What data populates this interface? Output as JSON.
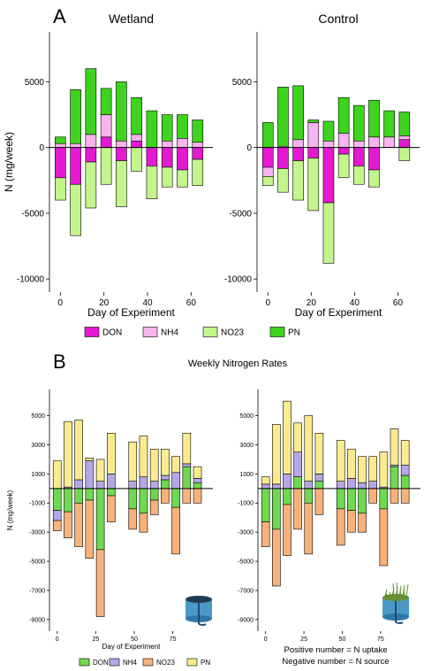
{
  "panel_labels": {
    "a": "A",
    "b": "B"
  },
  "footnote": {
    "line1": "Positive number = N uptake",
    "line2": "Negative number = N source"
  },
  "chart_data": [
    {
      "id": "A-wetland",
      "type": "bar",
      "stacked": true,
      "title": "Wetland",
      "xlabel": "Day of Experiment",
      "ylabel": "N (mg/week)",
      "xlim": [
        -5,
        70
      ],
      "ylim": [
        -11000,
        8800
      ],
      "xticks": [
        0,
        20,
        40,
        60
      ],
      "yticks": [
        -10000,
        -5000,
        0,
        5000
      ],
      "ytick_labels": [
        "-10000",
        "-5000",
        "0",
        "5000"
      ],
      "grid": false,
      "x": [
        0,
        7,
        14,
        21,
        28,
        35,
        42,
        49,
        56,
        63
      ],
      "series": [
        {
          "name": "DON",
          "color": "#e619d2",
          "values": [
            -2300,
            -2800,
            -1100,
            800,
            -1000,
            500,
            -1400,
            -1500,
            -1700,
            -900
          ]
        },
        {
          "name": "NH4",
          "color": "#f6b3ee",
          "values": [
            300,
            300,
            1000,
            1700,
            500,
            500,
            0,
            500,
            700,
            400
          ]
        },
        {
          "name": "NO23",
          "color": "#c3f58c",
          "values": [
            -1700,
            -3900,
            -3500,
            -2800,
            -3500,
            -1800,
            -2500,
            -1500,
            -1300,
            -2000
          ]
        },
        {
          "name": "PN",
          "color": "#3ed41e",
          "values": [
            500,
            4100,
            5000,
            2000,
            4500,
            2800,
            2800,
            2000,
            1800,
            1700
          ]
        }
      ],
      "legend": "bottom"
    },
    {
      "id": "A-control",
      "type": "bar",
      "stacked": true,
      "title": "Control",
      "xlabel": "Day of Experiment",
      "ylabel": "",
      "xlim": [
        -5,
        70
      ],
      "ylim": [
        -11000,
        8800
      ],
      "xticks": [
        0,
        20,
        40,
        60
      ],
      "yticks": [
        -10000,
        -5000,
        0,
        5000
      ],
      "ytick_labels": [
        "-10000",
        "-5000",
        "0",
        "5000"
      ],
      "grid": false,
      "x": [
        0,
        7,
        14,
        21,
        28,
        35,
        42,
        49,
        56,
        63
      ],
      "series": [
        {
          "name": "DON",
          "color": "#e619d2",
          "values": [
            -1500,
            -1600,
            -1000,
            -800,
            -4200,
            -500,
            -1400,
            -1700,
            0,
            600
          ]
        },
        {
          "name": "NH4",
          "color": "#f6b3ee",
          "values": [
            -700,
            100,
            600,
            1900,
            500,
            1100,
            500,
            800,
            800,
            300
          ]
        },
        {
          "name": "NO23",
          "color": "#c3f58c",
          "values": [
            -700,
            -1800,
            -3000,
            -4000,
            -4600,
            -1800,
            -1400,
            -1300,
            0,
            -1000
          ]
        },
        {
          "name": "PN",
          "color": "#3ed41e",
          "values": [
            1900,
            4500,
            4100,
            200,
            1500,
            2700,
            2700,
            2800,
            2000,
            1800
          ]
        }
      ],
      "legend": "bottom"
    },
    {
      "id": "B-control",
      "type": "bar",
      "stacked": true,
      "title": "Weekly Nitrogen Rates",
      "xlabel": "Day of Experiment",
      "ylabel": "N (mg/week)",
      "xlim": [
        -5,
        101
      ],
      "ylim": [
        -9800,
        6800
      ],
      "xticks": [
        0,
        25,
        50,
        75
      ],
      "yticks": [
        -9000,
        -7000,
        -5000,
        -3000,
        -1000,
        1000,
        3000,
        5000
      ],
      "ytick_labels": [
        "-9000",
        "-7000",
        "-5000",
        "-3000",
        "-1000",
        "1000",
        "3000",
        "5000"
      ],
      "grid": false,
      "x": [
        0,
        7,
        14,
        21,
        28,
        35,
        49,
        56,
        63,
        70,
        77,
        84,
        91
      ],
      "series": [
        {
          "name": "DON",
          "color": "#6fd94f",
          "values": [
            -1500,
            -1600,
            -1000,
            -800,
            -4200,
            -500,
            -1400,
            -1700,
            -800,
            600,
            -1300,
            1500,
            400
          ]
        },
        {
          "name": "NH4",
          "color": "#b4a7e6",
          "values": [
            -700,
            100,
            600,
            1900,
            500,
            1000,
            500,
            800,
            500,
            300,
            1100,
            200,
            300
          ]
        },
        {
          "name": "NO23",
          "color": "#f7b27b",
          "values": [
            -700,
            -1800,
            -3000,
            -4000,
            -4600,
            -1800,
            -1400,
            -1300,
            -1000,
            -1000,
            -3200,
            -1000,
            -1000
          ]
        },
        {
          "name": "PN",
          "color": "#fbeb8f",
          "values": [
            1900,
            4500,
            4100,
            200,
            1500,
            2800,
            2700,
            2800,
            2200,
            1800,
            1100,
            2100,
            800
          ]
        }
      ],
      "legend": "bottom"
    },
    {
      "id": "B-wetland",
      "type": "bar",
      "stacked": true,
      "title": "",
      "xlabel": "",
      "ylabel": "",
      "xlim": [
        -5,
        101
      ],
      "ylim": [
        -9800,
        6800
      ],
      "xticks": [
        0,
        25,
        50,
        75
      ],
      "yticks": [
        -9000,
        -7000,
        -5000,
        -3000,
        -1000,
        1000,
        3000,
        5000
      ],
      "ytick_labels": [
        "-9000",
        "-7000",
        "-5000",
        "-3000",
        "-1000",
        "1000",
        "3000",
        "5000"
      ],
      "grid": false,
      "x": [
        0,
        7,
        14,
        21,
        28,
        35,
        49,
        56,
        63,
        70,
        77,
        84,
        91
      ],
      "series": [
        {
          "name": "DON",
          "color": "#6fd94f",
          "values": [
            -2300,
            -2800,
            -1100,
            800,
            -1000,
            500,
            -1400,
            -1500,
            -1700,
            0,
            -1400,
            1500,
            900
          ]
        },
        {
          "name": "NH4",
          "color": "#b4a7e6",
          "values": [
            300,
            300,
            1000,
            1700,
            500,
            500,
            500,
            700,
            400,
            500,
            100,
            100,
            700
          ]
        },
        {
          "name": "NO23",
          "color": "#f7b27b",
          "values": [
            -1700,
            -3900,
            -3500,
            -2800,
            -3500,
            -1800,
            -2500,
            -1500,
            -1300,
            -1000,
            -3900,
            -1000,
            -1000
          ]
        },
        {
          "name": "PN",
          "color": "#fbeb8f",
          "values": [
            500,
            4100,
            5000,
            2000,
            4500,
            2800,
            2800,
            2000,
            1800,
            1700,
            2400,
            2500,
            1700
          ]
        }
      ],
      "legend": "none"
    }
  ]
}
